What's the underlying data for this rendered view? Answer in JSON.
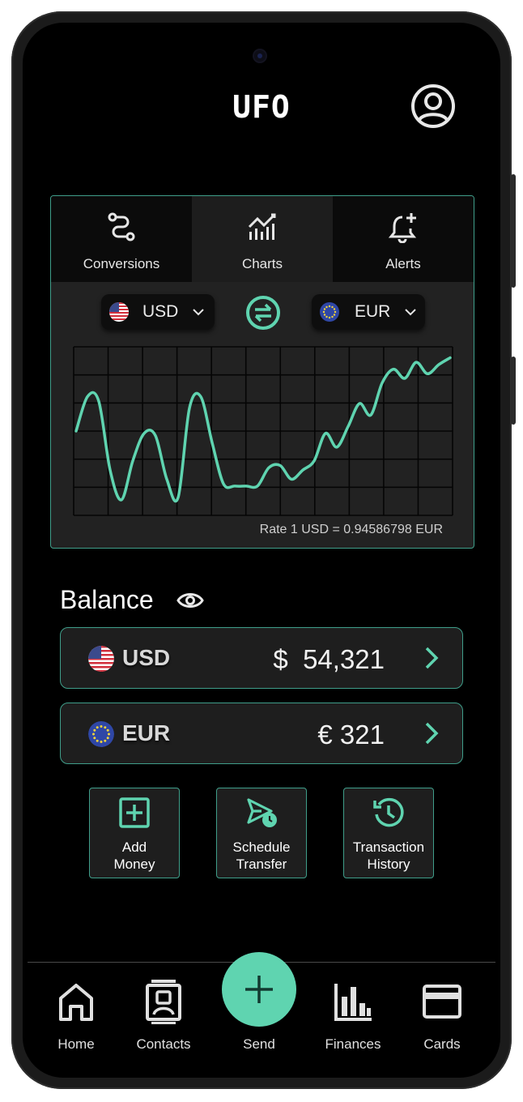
{
  "app": {
    "logo": "UFO"
  },
  "colors": {
    "accent": "#5fd4b0",
    "border": "#3f9e8a",
    "panel": "#222222",
    "background": "#000000"
  },
  "tabs": [
    {
      "label": "Conversions",
      "icon": "route-icon",
      "active": false
    },
    {
      "label": "Charts",
      "icon": "line-chart-icon",
      "active": true
    },
    {
      "label": "Alerts",
      "icon": "bell-plus-icon",
      "active": false
    }
  ],
  "converter": {
    "from": {
      "code": "USD",
      "flag": "us-flag-icon"
    },
    "to": {
      "code": "EUR",
      "flag": "eu-flag-icon"
    },
    "rate_text": "Rate 1 USD = 0.94586798 EUR"
  },
  "chart_data": {
    "type": "line",
    "series": [
      {
        "values": [
          0.935,
          0.95,
          0.948,
          0.918,
          0.905,
          0.922,
          0.934,
          0.933,
          0.914,
          0.906,
          0.945,
          0.95,
          0.93,
          0.912,
          0.911,
          0.911,
          0.911,
          0.919,
          0.92,
          0.914,
          0.918,
          0.922,
          0.934,
          0.928,
          0.937,
          0.947,
          0.942,
          0.956,
          0.962,
          0.958,
          0.965,
          0.96,
          0.964,
          0.967
        ]
      }
    ]
  },
  "balance": {
    "title": "Balance",
    "accounts": [
      {
        "code": "USD",
        "symbol": "$",
        "amount": "$  54,321",
        "flag": "us-flag-icon"
      },
      {
        "code": "EUR",
        "symbol": "€",
        "amount": "€ 321",
        "flag": "eu-flag-icon"
      }
    ]
  },
  "actions": [
    {
      "line1": "Add",
      "line2": "Money",
      "icon": "plus-square-icon"
    },
    {
      "line1": "Schedule",
      "line2": "Transfer",
      "icon": "send-clock-icon"
    },
    {
      "line1": "Transaction",
      "line2": "History",
      "icon": "history-icon"
    }
  ],
  "nav": {
    "home": "Home",
    "contacts": "Contacts",
    "send": "Send",
    "finances": "Finances",
    "cards": "Cards"
  }
}
